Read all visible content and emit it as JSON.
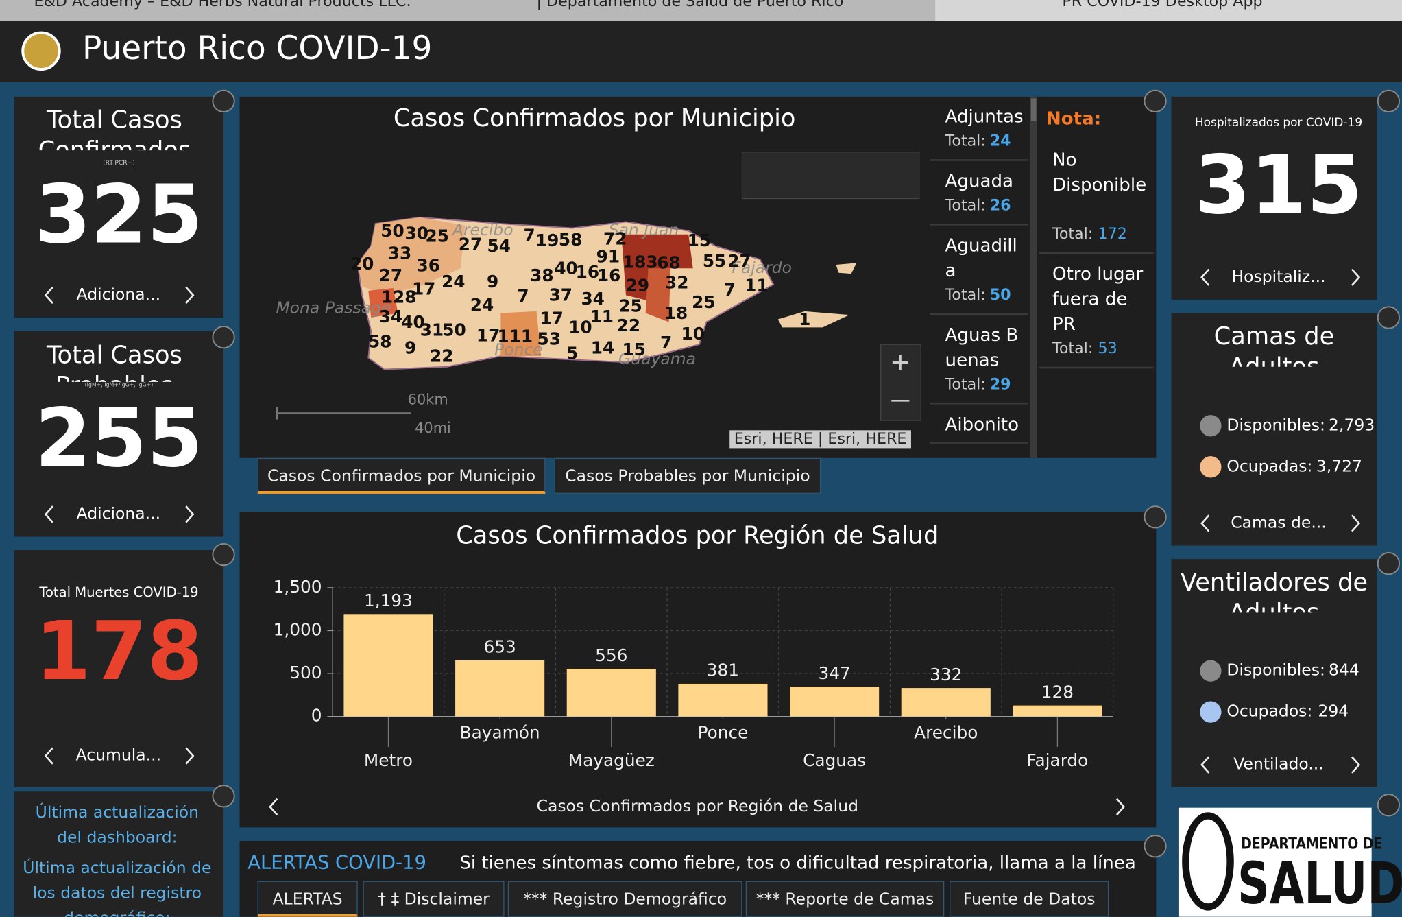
{
  "browser_tabs": [
    "E&D Academy – E&D Herbs Natural Products LLC.",
    "| Departamento de Salud de Puerto Rico",
    "PR COVID-19 Desktop App"
  ],
  "header": {
    "title": "Puerto Rico COVID-19"
  },
  "cards": [
    {
      "title": "Total Casos Confirmados",
      "subtitle": "(RT-PCR+)",
      "value": "325",
      "footer": "Adiciona..."
    },
    {
      "title": "Total Casos Probables",
      "subtitle": "(IgM+, IgM+/IgG+, IgG+)",
      "value": "255",
      "footer": "Adiciona..."
    },
    {
      "title": "Total Muertes COVID-19",
      "value": "178",
      "footer": "Acumula..."
    }
  ],
  "update_note": [
    "Última actualización del dashboard:",
    "Última actualización de los datos del registro demográfico:"
  ],
  "map": {
    "title": "Casos Confirmados por Municipio",
    "labels": [
      50,
      30,
      25,
      27,
      54,
      7,
      19,
      58,
      72,
      15,
      33,
      91,
      183,
      68,
      55,
      27,
      20,
      36,
      40,
      16,
      16,
      38,
      9,
      24,
      27,
      29,
      32,
      7,
      11,
      17,
      128,
      37,
      34,
      7,
      24,
      25,
      25,
      18,
      34,
      40,
      17,
      11,
      22,
      31,
      50,
      10,
      10,
      17,
      111,
      53,
      58,
      9,
      22,
      5,
      14,
      15,
      7,
      1
    ],
    "place_names": [
      "Arecibo",
      "San Juan",
      "Fajardo",
      "Ponce",
      "Guayama",
      "Mona Passage"
    ],
    "scale": [
      "60km",
      "40mi"
    ],
    "attribution": "Esri, HERE | Esri, HERE",
    "tabs": [
      "Casos Confirmados por Municipio",
      "Casos Probables por Municipio"
    ]
  },
  "municipios": {
    "total_label": "Total:",
    "items": [
      {
        "name": "Adjuntas",
        "total": 24
      },
      {
        "name": "Aguada",
        "total": 26
      },
      {
        "name": "Aguadilla",
        "total": 50
      },
      {
        "name": "Aguas Buenas",
        "total": 29
      },
      {
        "name": "Aibonito"
      }
    ]
  },
  "nota": {
    "title": "Nota:",
    "items": [
      {
        "name": "No Disponible",
        "total": 172
      },
      {
        "name": "Otro lugar fuera de PR",
        "total": 53
      }
    ]
  },
  "hospital": {
    "title": "Hospitalizados por COVID-19",
    "value": "315",
    "footer": "Hospitaliz..."
  },
  "beds": {
    "title": "Camas de Adultos",
    "items": [
      {
        "label": "Disponibles:",
        "value": "2,793",
        "color": "#8a8a8a"
      },
      {
        "label": "Ocupadas:",
        "value": "3,727",
        "color": "#f4bb8a"
      }
    ],
    "footer": "Camas de..."
  },
  "vents": {
    "title": "Ventiladores de Adultos",
    "items": [
      {
        "label": "Disponibles:",
        "value": "844",
        "color": "#8a8a8a"
      },
      {
        "label": "Ocupados:",
        "value": "294",
        "color": "#a9c6f2"
      }
    ],
    "footer": "Ventilado..."
  },
  "chart_data": {
    "type": "bar",
    "title": "Casos Confirmados por Región de Salud",
    "nav_label": "Casos Confirmados por Región de Salud",
    "categories": [
      "Metro",
      "Bayamón",
      "Mayagüez",
      "Ponce",
      "Caguas",
      "Arecibo",
      "Fajardo"
    ],
    "values": [
      1193,
      653,
      556,
      381,
      347,
      332,
      128
    ],
    "value_labels": [
      "1,193",
      "653",
      "556",
      "381",
      "347",
      "332",
      "128"
    ],
    "color": "#ffd68a",
    "ylim": [
      0,
      1500
    ],
    "yticks": [
      0,
      500,
      {
        "value": 1000,
        "label": "1,000"
      },
      {
        "value": 1500,
        "label": "1,500"
      }
    ],
    "grid": true
  },
  "alerts": {
    "title": "ALERTAS COVID-19",
    "text": "Si tienes síntomas como fiebre, tos o dificultad respiratoria, llama a la línea de",
    "tabs": [
      "ALERTAS",
      "† ‡ Disclaimer",
      "*** Registro Demográfico",
      "*** Reporte de Camas",
      "Fuente de Datos"
    ]
  },
  "logo": {
    "line1": "DEPARTAMENTO DE",
    "line2": "SALUD"
  }
}
